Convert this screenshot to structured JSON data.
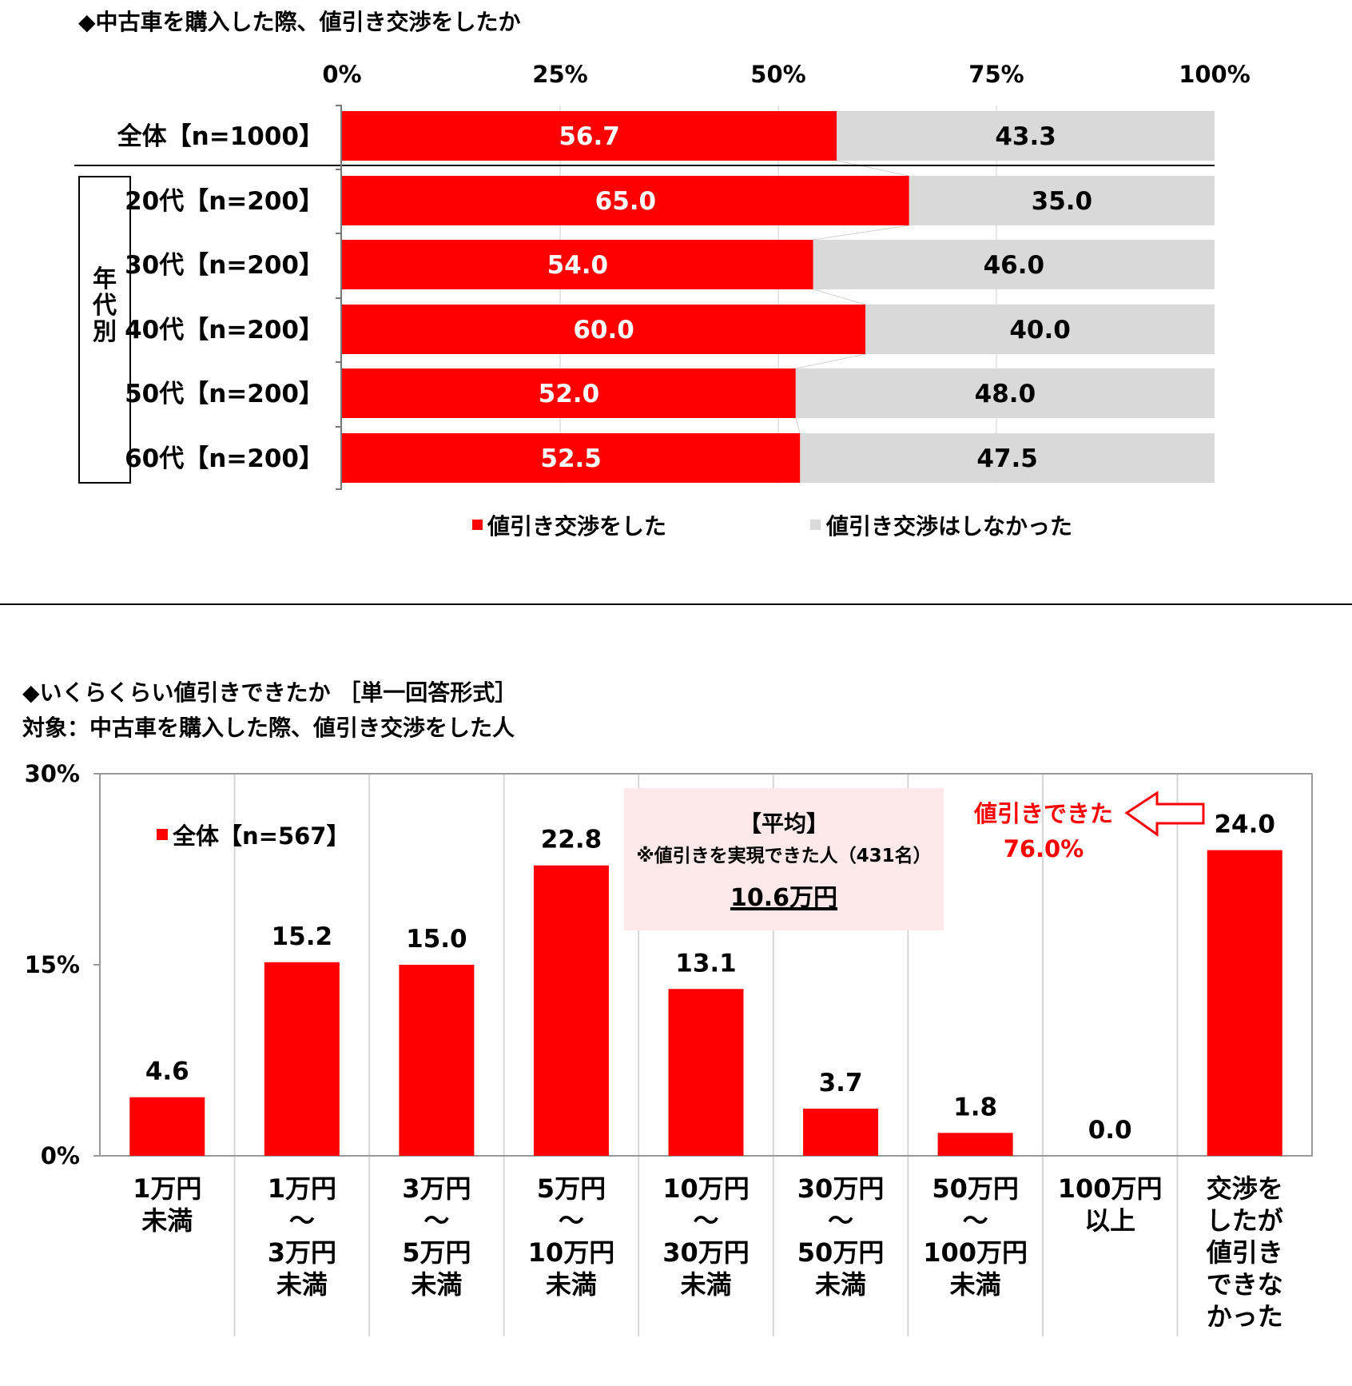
{
  "colors": {
    "red": "#ff0000",
    "gray": "#d9d9d9",
    "pink": "#fde9e9",
    "line": "#000000"
  },
  "chart_data": [
    {
      "type": "bar",
      "orientation": "horizontal-stacked-100",
      "title": "◆中古車を購入した際、値引き交渉をしたか",
      "xlim": [
        0,
        100
      ],
      "x_ticks": [
        "0%",
        "25%",
        "50%",
        "75%",
        "100%"
      ],
      "group_label": "年代別",
      "categories": [
        "全体【n=1000】",
        "20代【n=200】",
        "30代【n=200】",
        "40代【n=200】",
        "50代【n=200】",
        "60代【n=200】"
      ],
      "series": [
        {
          "name": "値引き交渉をした",
          "color": "#ff0000",
          "values": [
            56.7,
            65.0,
            54.0,
            60.0,
            52.0,
            52.5
          ]
        },
        {
          "name": "値引き交渉はしなかった",
          "color": "#d9d9d9",
          "values": [
            43.3,
            35.0,
            46.0,
            40.0,
            48.0,
            47.5
          ]
        }
      ],
      "legend_position": "bottom"
    },
    {
      "type": "bar",
      "title": "◆いくらくらい値引きできたか ［単一回答形式］",
      "subtitle": "対象：中古車を購入した際、値引き交渉をした人",
      "ylim": [
        0,
        30
      ],
      "y_ticks": [
        "0%",
        "15%",
        "30%"
      ],
      "categories": [
        [
          "1万円",
          "未満"
        ],
        [
          "1万円",
          "～",
          "3万円",
          "未満"
        ],
        [
          "3万円",
          "～",
          "5万円",
          "未満"
        ],
        [
          "5万円",
          "～",
          "10万円",
          "未満"
        ],
        [
          "10万円",
          "～",
          "30万円",
          "未満"
        ],
        [
          "30万円",
          "～",
          "50万円",
          "未満"
        ],
        [
          "50万円",
          "～",
          "100万円",
          "未満"
        ],
        [
          "100万円",
          "以上"
        ],
        [
          "交渉を",
          "したが",
          "値引き",
          "できな",
          "かった"
        ]
      ],
      "series": [
        {
          "name": "全体【n=567】",
          "color": "#ff0000",
          "values": [
            4.6,
            15.2,
            15.0,
            22.8,
            13.1,
            3.7,
            1.8,
            0.0,
            24.0
          ]
        }
      ],
      "value_labels": [
        "4.6",
        "15.2",
        "15.0",
        "22.8",
        "13.1",
        "3.7",
        "1.8",
        "0.0",
        "24.0"
      ],
      "annotations": {
        "average_box": {
          "title": "【平均】",
          "note": "※値引きを実現できた人（431名）",
          "value": "10.6万円"
        },
        "callout": {
          "line1": "値引きできた",
          "line2": "76.0%"
        }
      }
    }
  ]
}
